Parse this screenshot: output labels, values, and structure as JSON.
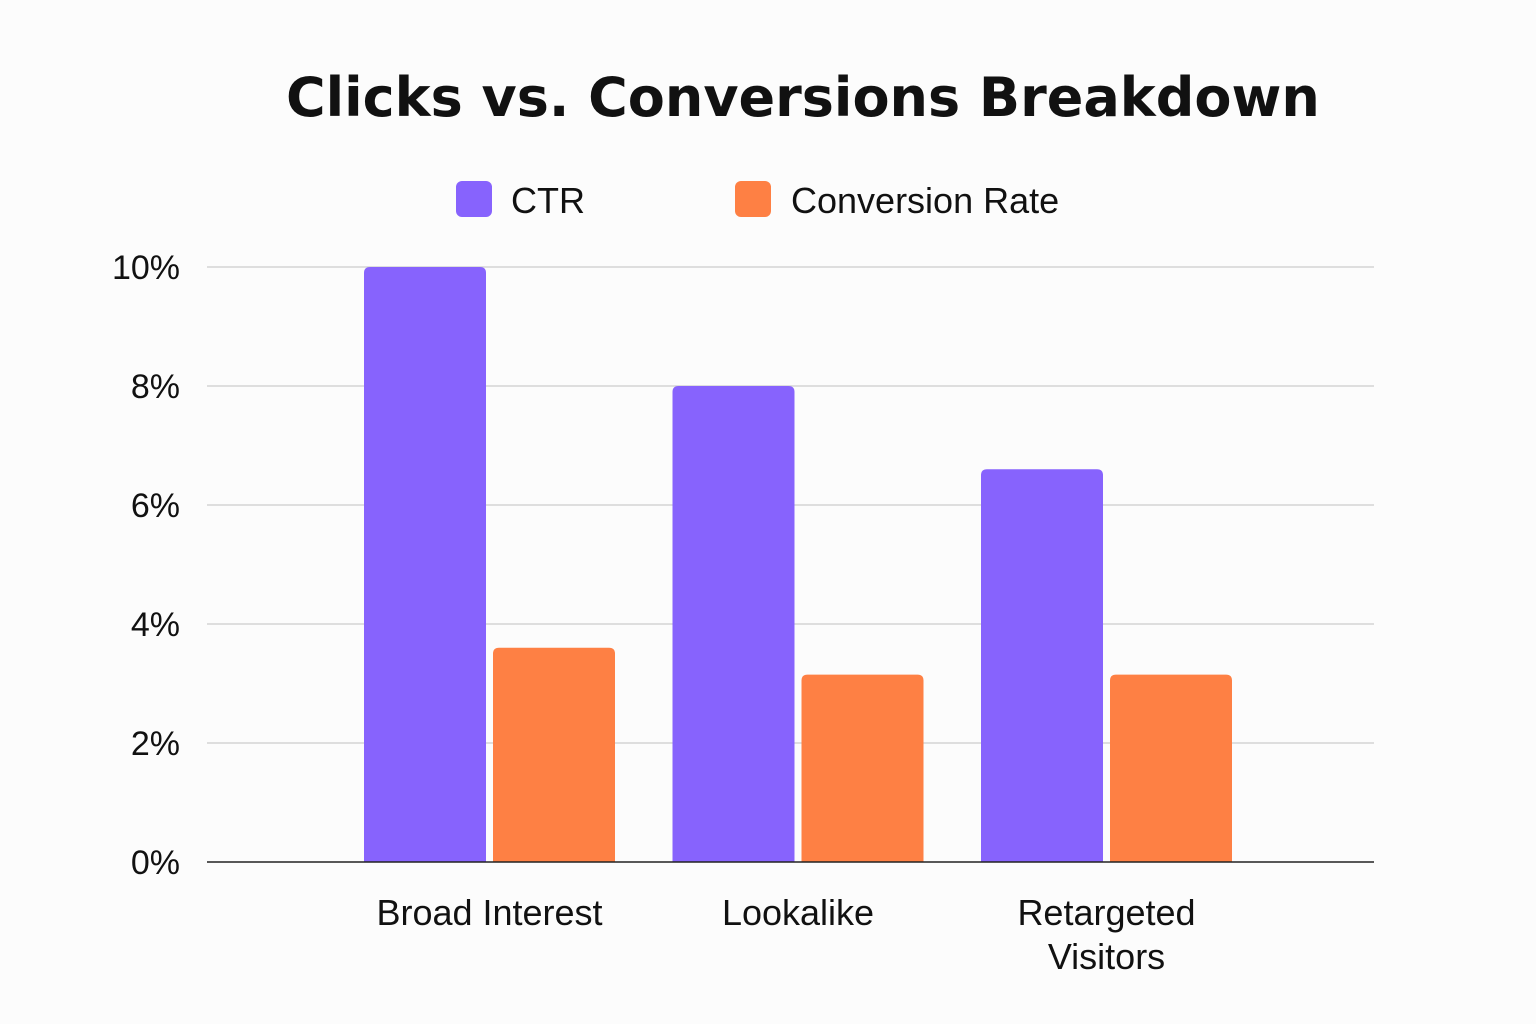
{
  "chart_data": {
    "type": "bar",
    "title": "Clicks vs. Conversions Breakdown",
    "xlabel": "",
    "ylabel": "",
    "categories": [
      [
        "Broad Interest"
      ],
      [
        "Lookalike"
      ],
      [
        "Retargeted",
        "Visitors"
      ]
    ],
    "series": [
      {
        "name": "CTR",
        "color": "#8763fd",
        "values": [
          10.0,
          8.0,
          6.6
        ]
      },
      {
        "name": "Conversion Rate",
        "color": "#fe8044",
        "values": [
          3.6,
          3.15,
          3.15
        ]
      }
    ],
    "ylim": [
      0,
      10
    ],
    "yticks": [
      0,
      2,
      4,
      6,
      8,
      10
    ],
    "ytick_labels": [
      "0%",
      "2%",
      "4%",
      "6%",
      "8%",
      "10%"
    ],
    "grid": true,
    "legend": "top"
  }
}
